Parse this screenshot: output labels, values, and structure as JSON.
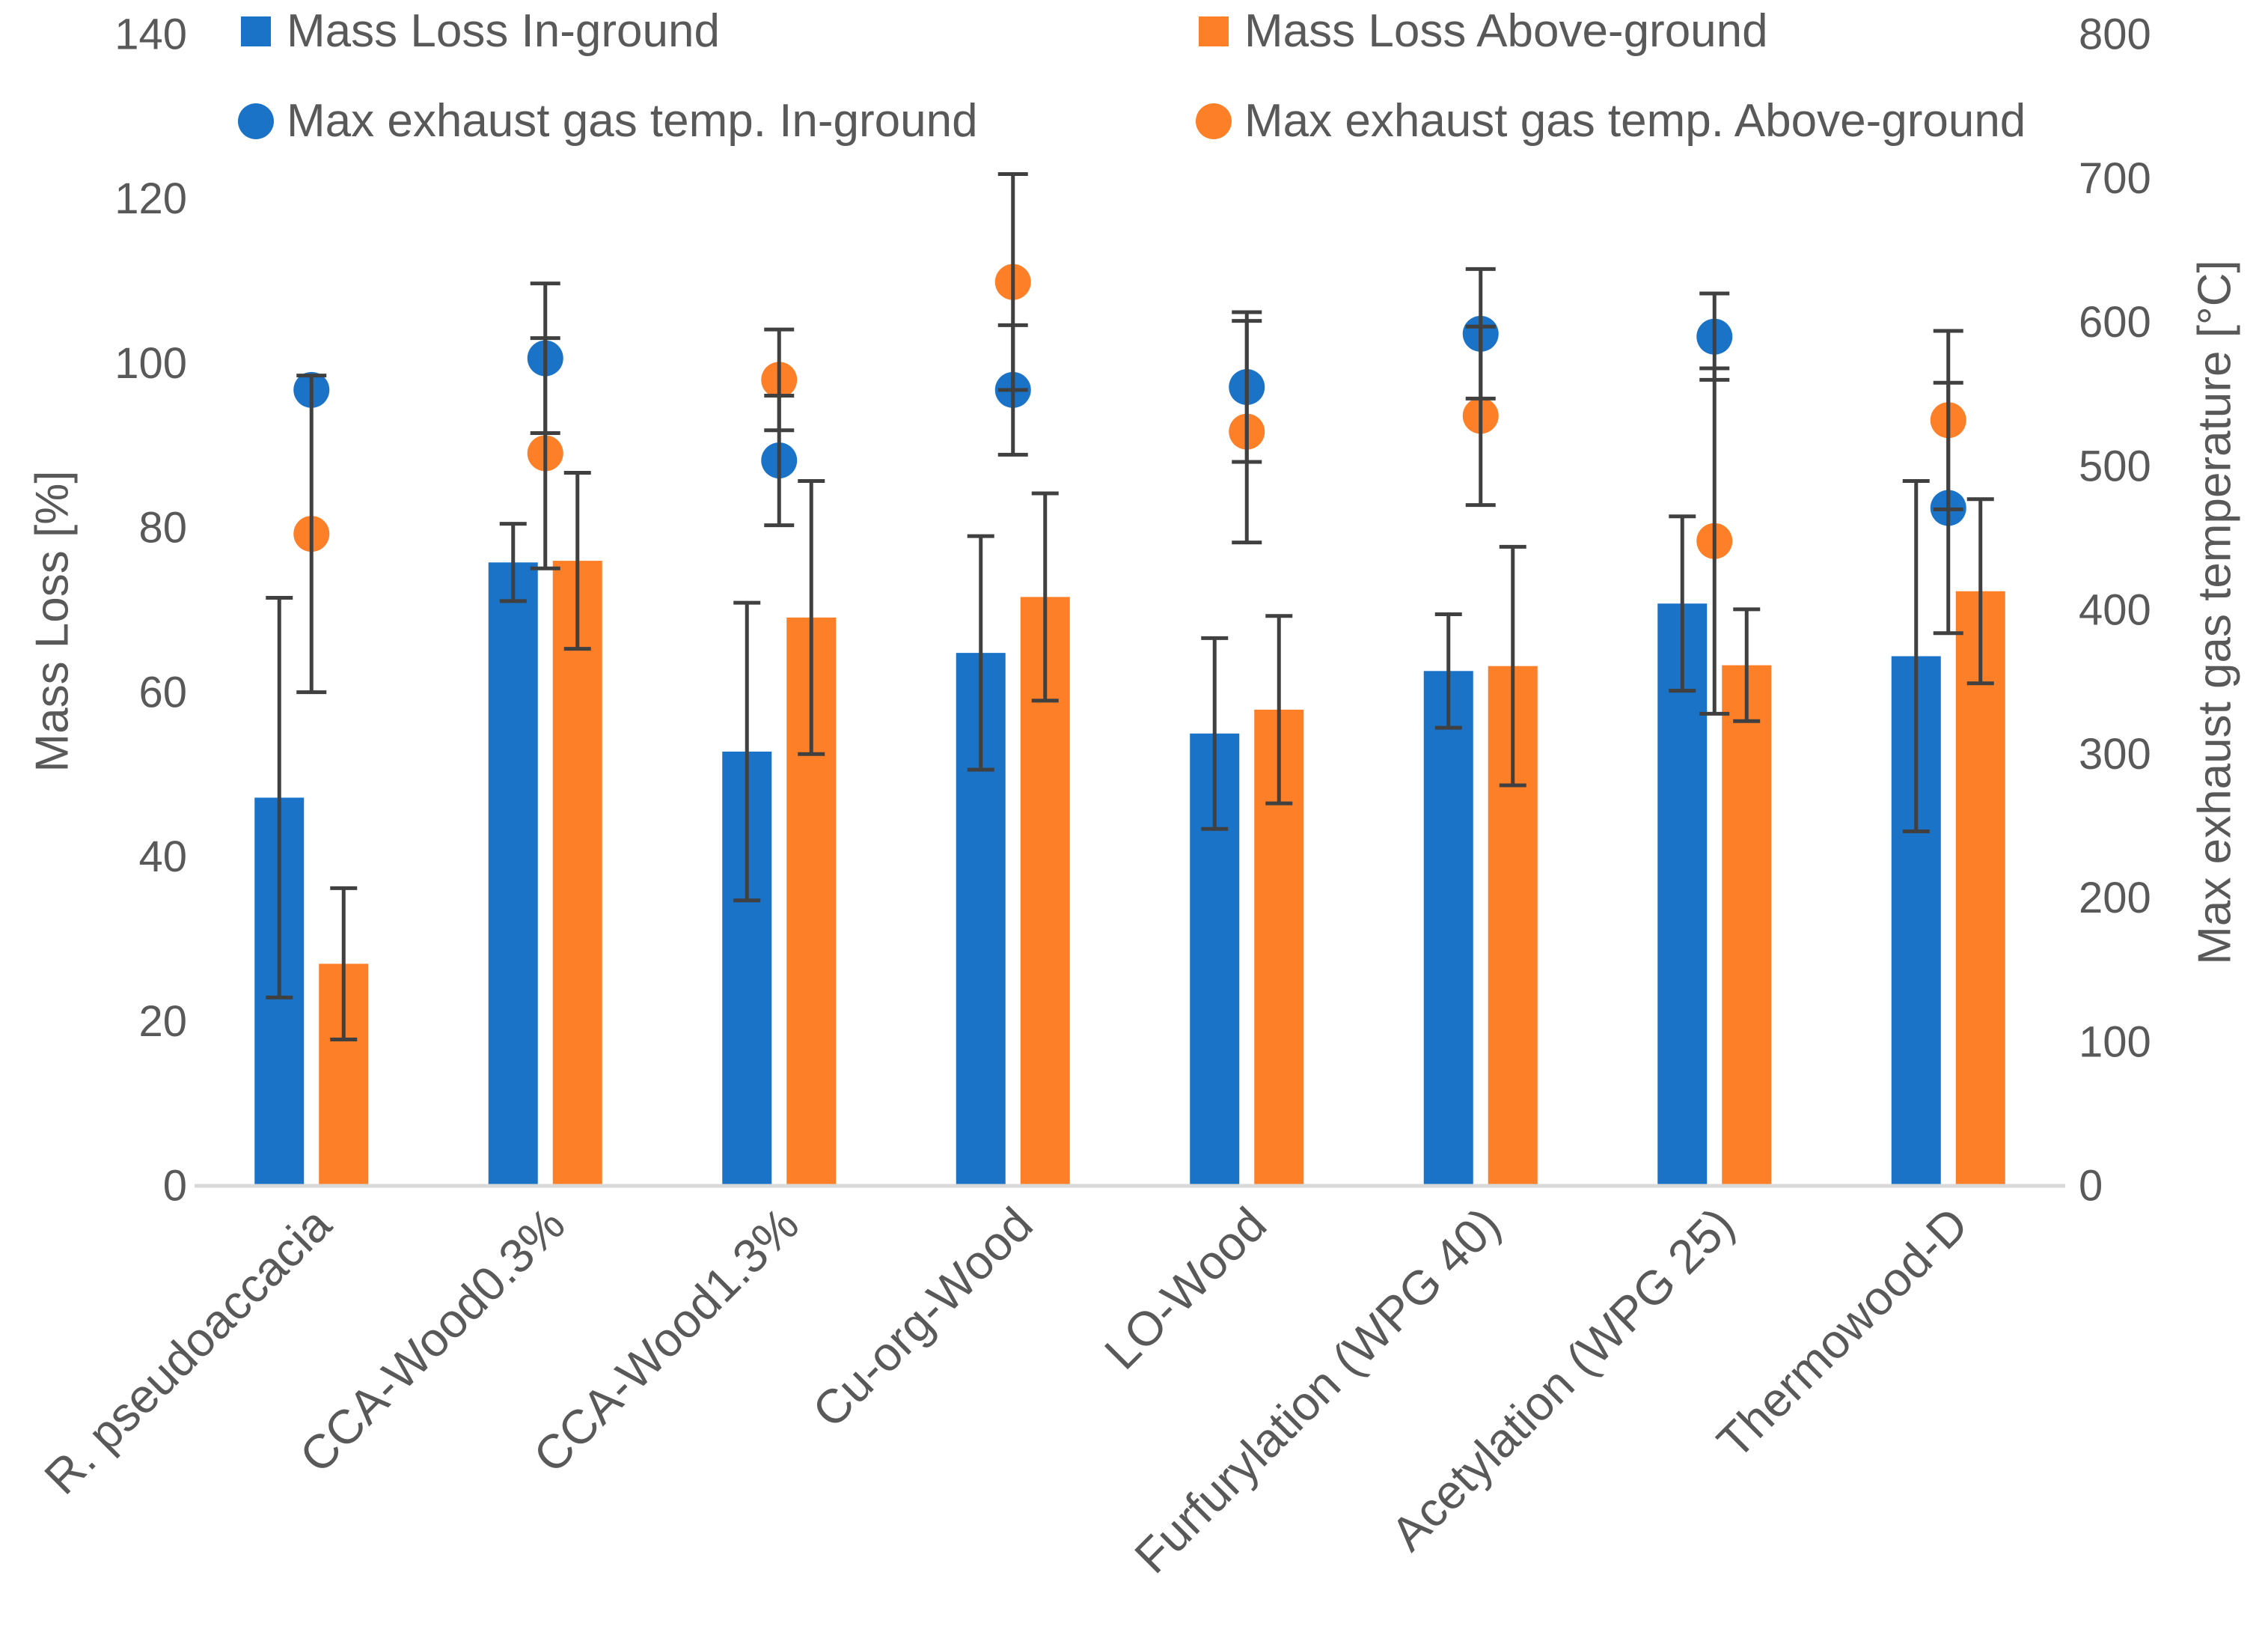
{
  "chart_data": {
    "type": "bar",
    "categories": [
      "R. pseudoaccacia",
      "CCA-Wood0.3%",
      "CCA-Wood1.3%",
      "Cu-org-Wood",
      "LO-Wood",
      "Furfurylation (WPG 40)",
      "Acetylation (WPG 25)",
      "Thermowood-D"
    ],
    "y_left": {
      "label": "Mass Loss [%]",
      "range": [
        0,
        140
      ],
      "ticks": [
        0,
        20,
        40,
        60,
        80,
        100,
        120,
        140
      ],
      "tick_labels": [
        "0",
        "20",
        "40",
        "60",
        "80",
        "100",
        "120",
        "140"
      ]
    },
    "y_right": {
      "label": "Max exhaust gas temperature [°C]",
      "range": [
        0,
        800
      ],
      "ticks": [
        0,
        100,
        200,
        300,
        400,
        500,
        600,
        700,
        800
      ],
      "tick_labels": [
        "0",
        "100",
        "200",
        "300",
        "400",
        "500",
        "600",
        "700",
        "800"
      ]
    },
    "series": [
      {
        "name": "Mass Loss In-ground",
        "kind": "bar",
        "axis": "left",
        "color": "#1a73c7",
        "values": [
          47.2,
          75.8,
          52.8,
          64.8,
          55.0,
          62.6,
          70.8,
          64.4
        ],
        "error": [
          24.3,
          4.7,
          18.1,
          14.2,
          11.6,
          6.9,
          10.6,
          21.3
        ]
      },
      {
        "name": "Mass Loss Above-ground",
        "kind": "bar",
        "axis": "left",
        "color": "#fd7f28",
        "values": [
          27.0,
          76.0,
          69.1,
          71.6,
          57.9,
          63.2,
          63.3,
          72.3
        ],
        "error": [
          9.2,
          10.7,
          16.6,
          12.6,
          11.4,
          14.5,
          6.8,
          11.2
        ]
      },
      {
        "name": "Max exhaust gas temp. In-ground",
        "kind": "scatter",
        "axis": "right",
        "color": "#1a73c7",
        "values": [
          553,
          575,
          504,
          553,
          555,
          592,
          590,
          471
        ],
        "error": [
          0,
          52,
          45,
          45,
          52,
          45,
          30,
          87
        ]
      },
      {
        "name": "Max exhaust gas temp. Above-ground",
        "kind": "scatter",
        "axis": "right",
        "color": "#fd7f28",
        "values": [
          453,
          509,
          560,
          628,
          524,
          535,
          448,
          532
        ],
        "error": [
          110,
          80,
          35,
          75,
          77,
          62,
          120,
          62
        ]
      }
    ],
    "legend_position": "top",
    "grid": false
  },
  "style": {
    "text_color": "#595959",
    "axis_line_color": "#d9d9d9",
    "error_bar_color": "#404040"
  }
}
